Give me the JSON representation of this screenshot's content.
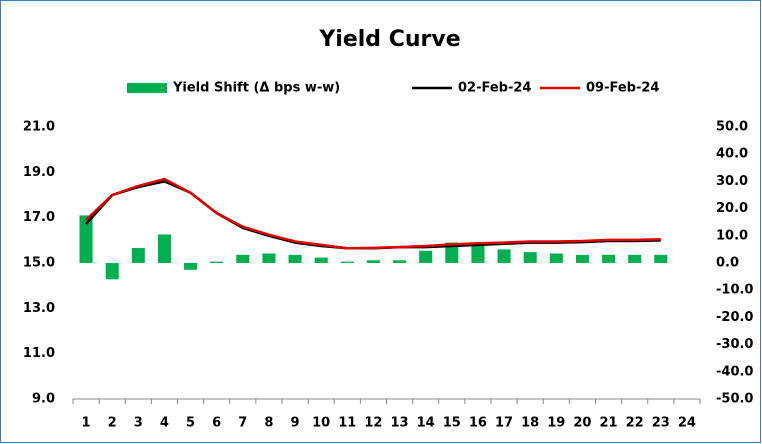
{
  "chart_data": {
    "type": "combo",
    "title": "Yield Curve",
    "categories": [
      1,
      2,
      3,
      4,
      5,
      6,
      7,
      8,
      9,
      10,
      11,
      12,
      13,
      14,
      15,
      16,
      17,
      18,
      19,
      20,
      21,
      22,
      23,
      24
    ],
    "series": [
      {
        "name": "Yield Shift (Δ bps w-w)",
        "type": "bar",
        "axis": "y2",
        "color": "#00b050",
        "values": [
          17.5,
          -6,
          5.5,
          10.5,
          -2.5,
          0.5,
          3,
          3.5,
          3,
          2,
          0.5,
          1,
          1,
          4.5,
          7.5,
          7,
          5,
          4,
          3.5,
          3,
          3,
          3,
          3,
          null
        ]
      },
      {
        "name": "02-Feb-24",
        "type": "line",
        "color": "#000000",
        "values": [
          16.72,
          18.0,
          18.35,
          18.6,
          18.1,
          17.2,
          16.55,
          16.2,
          15.9,
          15.75,
          15.65,
          15.65,
          15.7,
          15.7,
          15.75,
          15.8,
          15.85,
          15.9,
          15.9,
          15.92,
          15.97,
          15.97,
          16.0,
          null
        ]
      },
      {
        "name": "09-Feb-24",
        "type": "line",
        "color": "#e00000",
        "values": [
          16.9,
          18.0,
          18.4,
          18.7,
          18.1,
          17.2,
          16.6,
          16.25,
          15.95,
          15.8,
          15.65,
          15.67,
          15.7,
          15.75,
          15.82,
          15.87,
          15.9,
          15.95,
          15.95,
          15.97,
          16.02,
          16.02,
          16.05,
          null
        ]
      }
    ],
    "ylim": [
      9,
      21
    ],
    "yticks": [
      {
        "value": 9,
        "label": "9.0"
      },
      {
        "value": 11,
        "label": "11.0"
      },
      {
        "value": 13,
        "label": "13.0"
      },
      {
        "value": 15,
        "label": "15.0"
      },
      {
        "value": 17,
        "label": "17.0"
      },
      {
        "value": 19,
        "label": "19.0"
      },
      {
        "value": 21,
        "label": "21.0"
      }
    ],
    "y2lim": [
      -50,
      50
    ],
    "y2ticks": [
      {
        "value": -50,
        "label": "-50.0"
      },
      {
        "value": -40,
        "label": "-40.0"
      },
      {
        "value": -30,
        "label": "-30.0"
      },
      {
        "value": -20,
        "label": "-20.0"
      },
      {
        "value": -10,
        "label": "-10.0"
      },
      {
        "value": 0,
        "label": "0.0"
      },
      {
        "value": 10,
        "label": "10.0"
      },
      {
        "value": 20,
        "label": "20.0"
      },
      {
        "value": 30,
        "label": "30.0"
      },
      {
        "value": 40,
        "label": "40.0"
      },
      {
        "value": 50,
        "label": "50.0"
      }
    ],
    "grid": false,
    "legend": "top"
  }
}
